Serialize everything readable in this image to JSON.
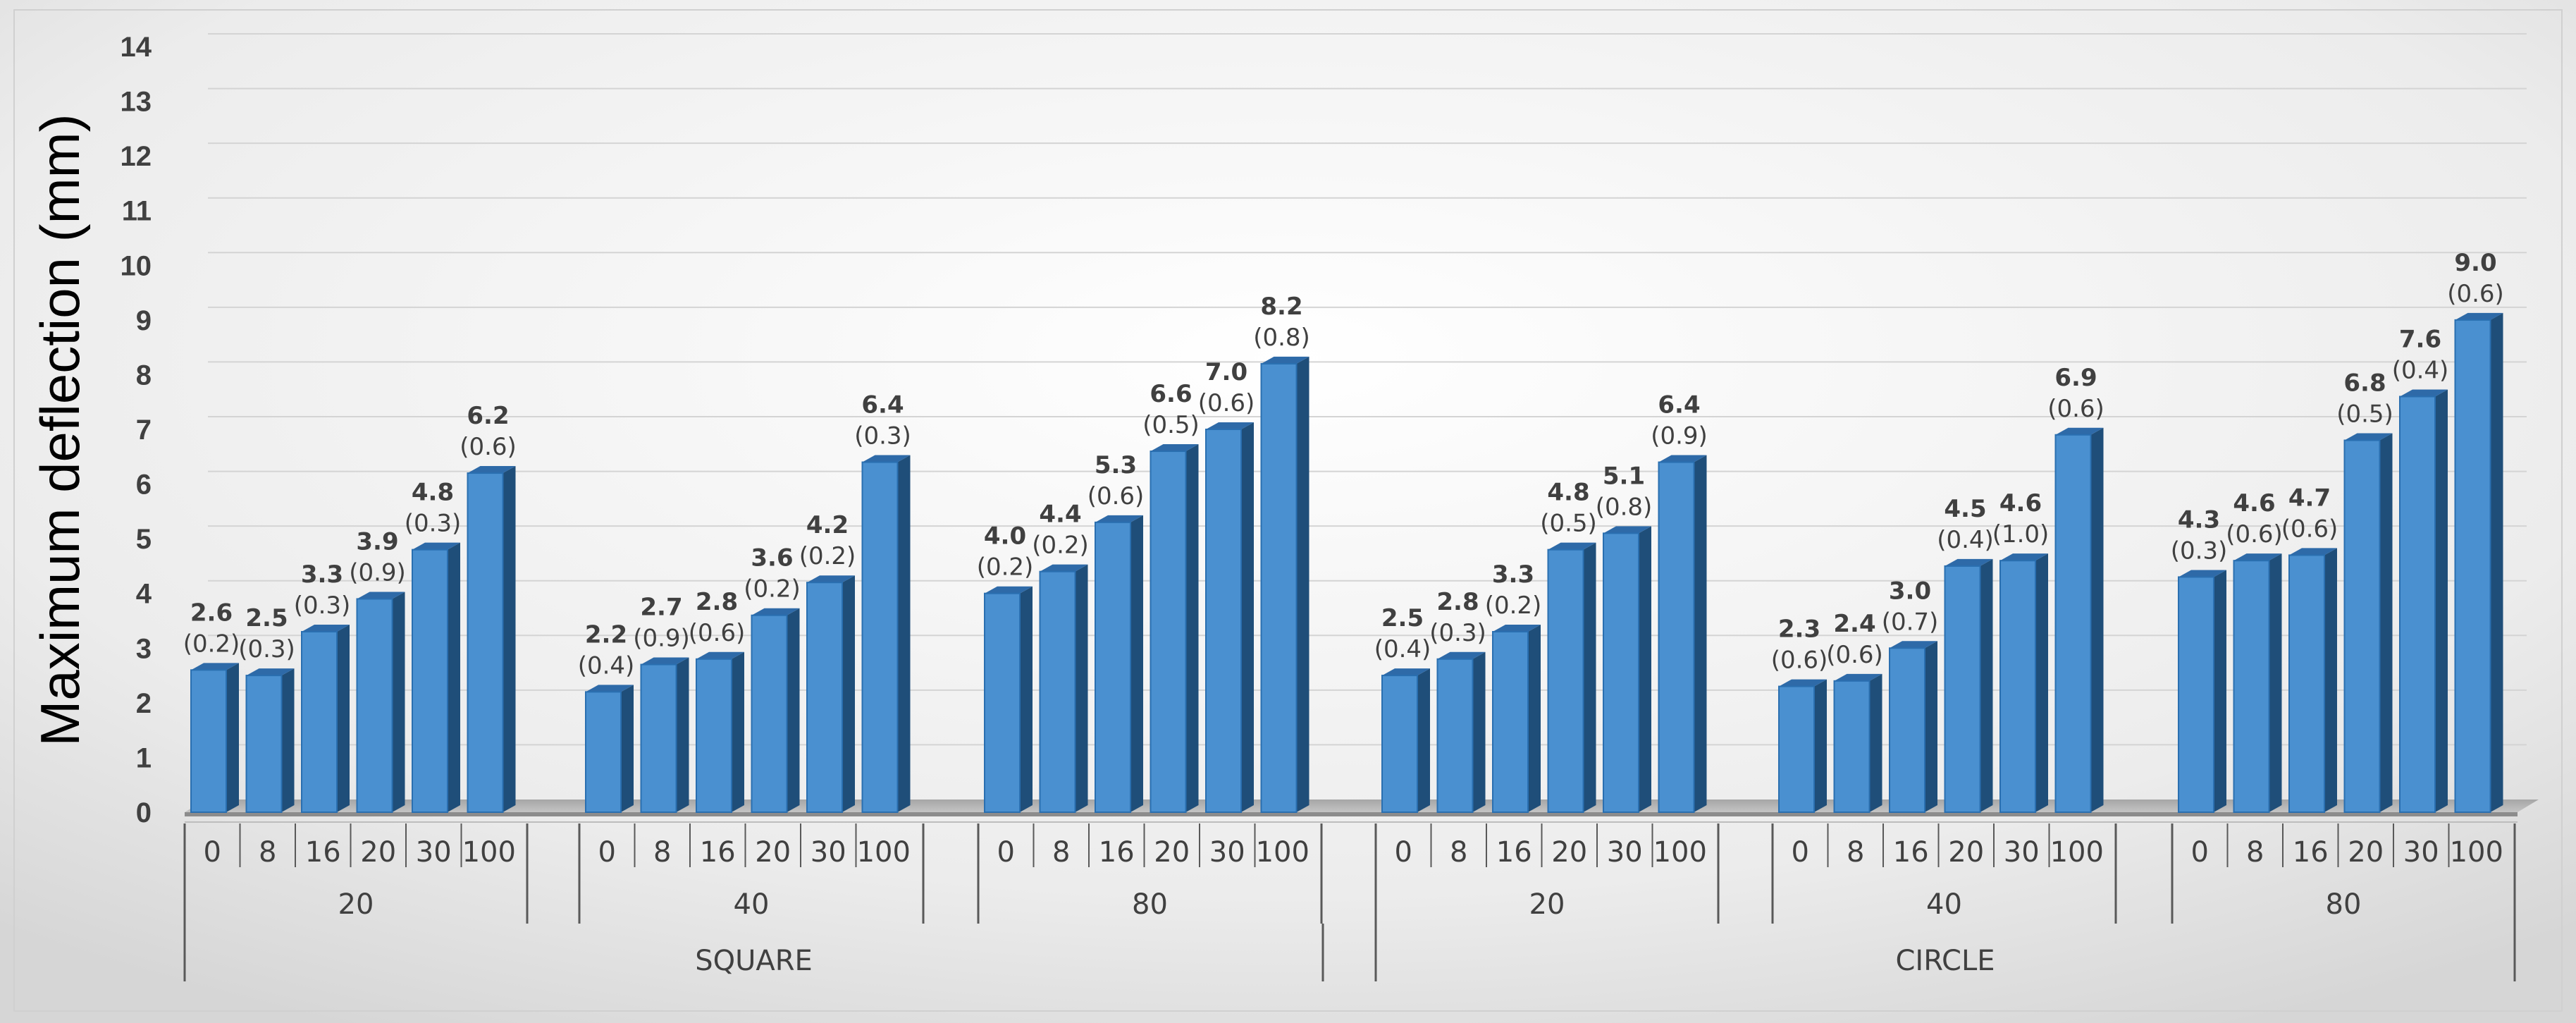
{
  "chart_data": {
    "type": "bar",
    "title": "",
    "ylabel": "Maximum deflection (mm)",
    "xlabel": "",
    "ylim": [
      0,
      14
    ],
    "yticks": [
      "0",
      "1",
      "2",
      "3",
      "4",
      "5",
      "6",
      "7",
      "8",
      "9",
      "10",
      "11",
      "12",
      "13",
      "14"
    ],
    "grid": true,
    "bar_color": "#4A90D0",
    "bar_dark_color": "#1F4E79",
    "groups": [
      {
        "shape": "SQUARE",
        "subgroups": [
          {
            "size": "20",
            "categories": [
              "0",
              "8",
              "16",
              "20",
              "30",
              "100"
            ],
            "values": [
              2.6,
              2.5,
              3.3,
              3.9,
              4.8,
              6.2
            ],
            "value_labels": [
              "2.6",
              "2.5",
              "3.3",
              "3.9",
              "4.8",
              "6.2"
            ],
            "sd_labels": [
              "(0.2)",
              "(0.3)",
              "(0.3)",
              "(0.9)",
              "(0.3)",
              "(0.6)"
            ]
          },
          {
            "size": "40",
            "categories": [
              "0",
              "8",
              "16",
              "20",
              "30",
              "100"
            ],
            "values": [
              2.2,
              2.7,
              2.8,
              3.6,
              4.2,
              6.4
            ],
            "value_labels": [
              "2.2",
              "2.7",
              "2.8",
              "3.6",
              "4.2",
              "6.4"
            ],
            "sd_labels": [
              "(0.4)",
              "(0.9)",
              "(0.6)",
              "(0.2)",
              "(0.2)",
              "(0.3)"
            ]
          },
          {
            "size": "80",
            "categories": [
              "0",
              "8",
              "16",
              "20",
              "30",
              "100"
            ],
            "values": [
              4.0,
              4.4,
              5.3,
              6.6,
              7.0,
              8.2
            ],
            "value_labels": [
              "4.0",
              "4.4",
              "5.3",
              "6.6",
              "7.0",
              "8.2"
            ],
            "sd_labels": [
              "(0.2)",
              "(0.2)",
              "(0.6)",
              "(0.5)",
              "(0.6)",
              "(0.8)"
            ]
          }
        ]
      },
      {
        "shape": "CIRCLE",
        "subgroups": [
          {
            "size": "20",
            "categories": [
              "0",
              "8",
              "16",
              "20",
              "30",
              "100"
            ],
            "values": [
              2.5,
              2.8,
              3.3,
              4.8,
              5.1,
              6.4
            ],
            "value_labels": [
              "2.5",
              "2.8",
              "3.3",
              "4.8",
              "5.1",
              "6.4"
            ],
            "sd_labels": [
              "(0.4)",
              "(0.3)",
              "(0.2)",
              "(0.5)",
              "(0.8)",
              "(0.9)"
            ]
          },
          {
            "size": "40",
            "categories": [
              "0",
              "8",
              "16",
              "20",
              "30",
              "100"
            ],
            "values": [
              2.3,
              2.4,
              3.0,
              4.5,
              4.6,
              6.9
            ],
            "value_labels": [
              "2.3",
              "2.4",
              "3.0",
              "4.5",
              "4.6",
              "6.9"
            ],
            "sd_labels": [
              "(0.6)",
              "(0.6)",
              "(0.7)",
              "(0.4)",
              "(1.0)",
              "(0.6)"
            ]
          },
          {
            "size": "80",
            "categories": [
              "0",
              "8",
              "16",
              "20",
              "30",
              "100"
            ],
            "values": [
              4.3,
              4.6,
              4.7,
              6.8,
              7.6,
              9.0
            ],
            "value_labels": [
              "4.3",
              "4.6",
              "4.7",
              "6.8",
              "7.6",
              "9.0"
            ],
            "sd_labels": [
              "(0.3)",
              "(0.6)",
              "(0.6)",
              "(0.5)",
              "(0.4)",
              "(0.6)"
            ]
          }
        ]
      }
    ]
  }
}
